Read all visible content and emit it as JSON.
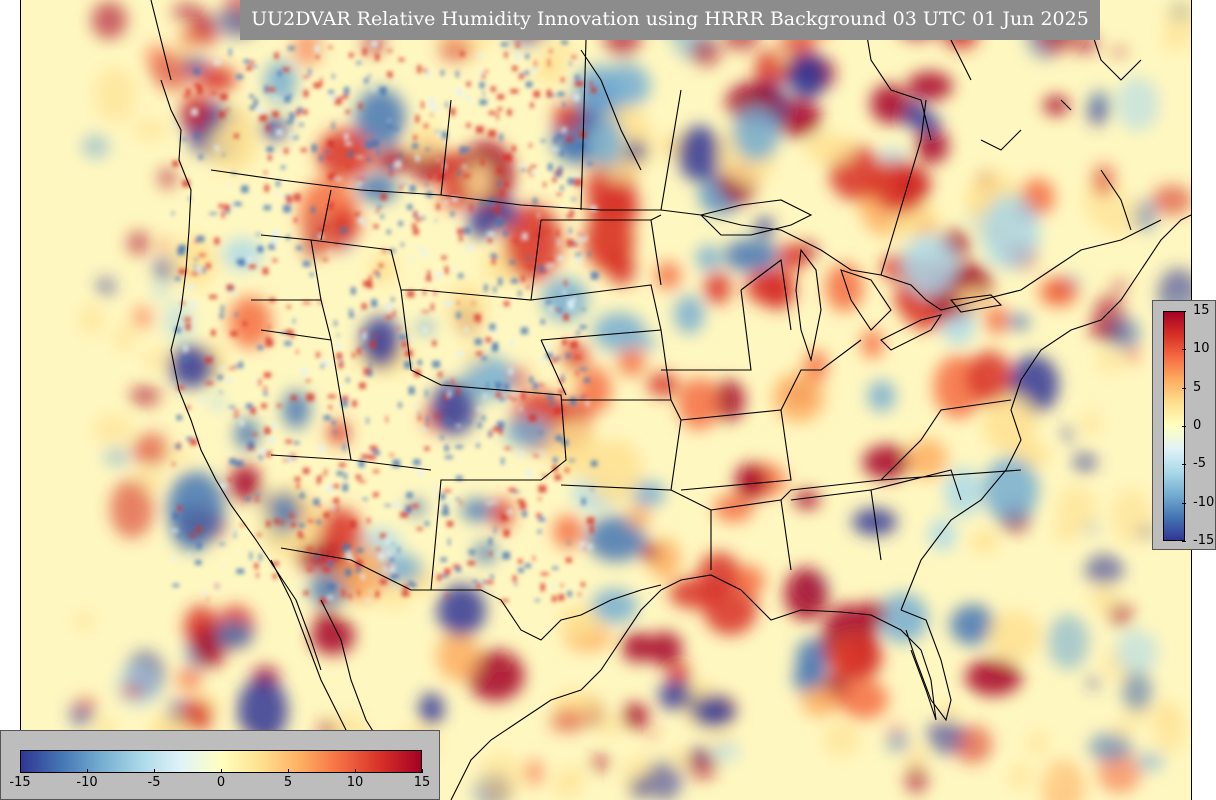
{
  "title": "UU2DVAR Relative Humidity Innovation using HRRR Background 03 UTC 01 Jun 2025",
  "map": {
    "region": "CONUS",
    "variable": "Relative Humidity Innovation",
    "background_model": "HRRR",
    "colormap": "RdYlBu_r",
    "field_background_color": "#fff9c4"
  },
  "colorbar": {
    "min": -15,
    "max": 15,
    "tick_labels": [
      "-15",
      "-10",
      "-5",
      "0",
      "5",
      "10",
      "15"
    ],
    "colors": [
      "#313695",
      "#4575b4",
      "#74add1",
      "#abd9e9",
      "#e0f3f8",
      "#ffffbf",
      "#fee090",
      "#fdae61",
      "#f46d43",
      "#d73027",
      "#a50026"
    ]
  }
}
